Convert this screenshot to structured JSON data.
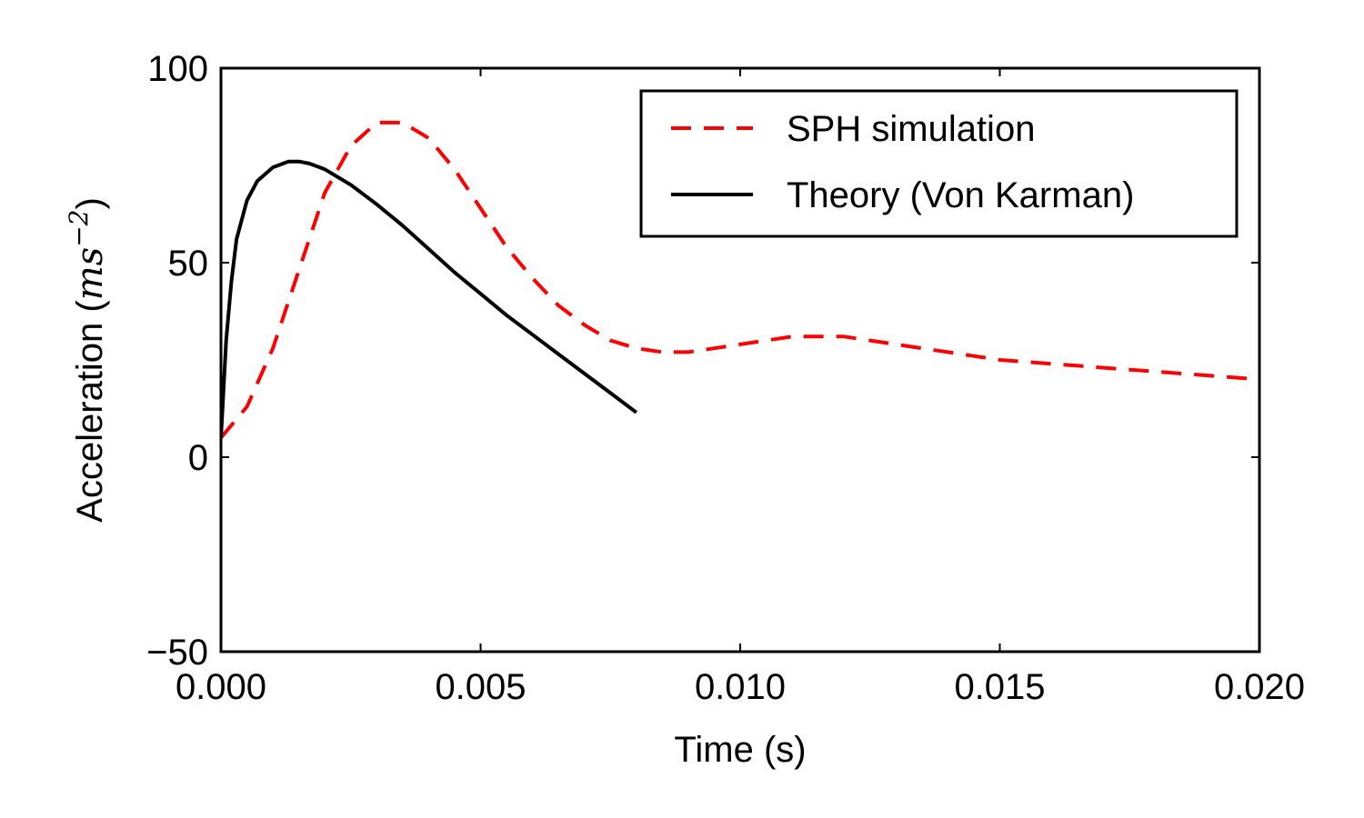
{
  "chart_data": {
    "type": "line",
    "xlabel": "Time (s)",
    "ylabel": {
      "prefix": "Acceleration (",
      "unit_base": "ms",
      "unit_exp": "−2",
      "suffix": ")"
    },
    "xlim": [
      0.0,
      0.02
    ],
    "ylim": [
      -50,
      100
    ],
    "x_ticks": [
      0.0,
      0.005,
      0.01,
      0.015,
      0.02
    ],
    "x_tick_labels": [
      "0.000",
      "0.005",
      "0.010",
      "0.015",
      "0.020"
    ],
    "y_ticks": [
      -50,
      0,
      50,
      100
    ],
    "y_tick_labels": [
      "−50",
      "0",
      "50",
      "100"
    ],
    "grid": false,
    "legend": {
      "placement": "top-right"
    },
    "series": [
      {
        "name": "SPH simulation",
        "color": "#ff0000",
        "style": "dashed",
        "x": [
          0.0,
          0.0005,
          0.001,
          0.0015,
          0.002,
          0.0025,
          0.003,
          0.0035,
          0.004,
          0.0045,
          0.005,
          0.0055,
          0.006,
          0.0065,
          0.007,
          0.0075,
          0.008,
          0.0085,
          0.009,
          0.0095,
          0.01,
          0.0105,
          0.011,
          0.0115,
          0.012,
          0.0125,
          0.013,
          0.0135,
          0.014,
          0.0145,
          0.015,
          0.0155,
          0.016,
          0.0165,
          0.017,
          0.0175,
          0.018,
          0.0185,
          0.019,
          0.0195,
          0.02
        ],
        "y": [
          5,
          13,
          28,
          48,
          68,
          80,
          86,
          86,
          82,
          74,
          64,
          54,
          46,
          39,
          34,
          30,
          28,
          27,
          27,
          28,
          29,
          30,
          31,
          31,
          31,
          30,
          29,
          28,
          27,
          26,
          25,
          24.5,
          24,
          23.5,
          23,
          22.5,
          22,
          21.5,
          21,
          20.5,
          20
        ]
      },
      {
        "name": "Theory (Von Karman)",
        "color": "#000000",
        "style": "solid",
        "x": [
          0.0,
          0.0001,
          0.0002,
          0.0003,
          0.0005,
          0.0007,
          0.001,
          0.0013,
          0.0015,
          0.0017,
          0.002,
          0.0025,
          0.003,
          0.0035,
          0.004,
          0.0045,
          0.005,
          0.0055,
          0.006,
          0.0065,
          0.007,
          0.0075,
          0.008
        ],
        "y": [
          5,
          30,
          45,
          56,
          66,
          71,
          74.5,
          76,
          76,
          75.5,
          74,
          70,
          65,
          59.5,
          53.5,
          47.5,
          42,
          36.5,
          31.5,
          26.5,
          21.5,
          16.5,
          11.5
        ]
      }
    ]
  }
}
